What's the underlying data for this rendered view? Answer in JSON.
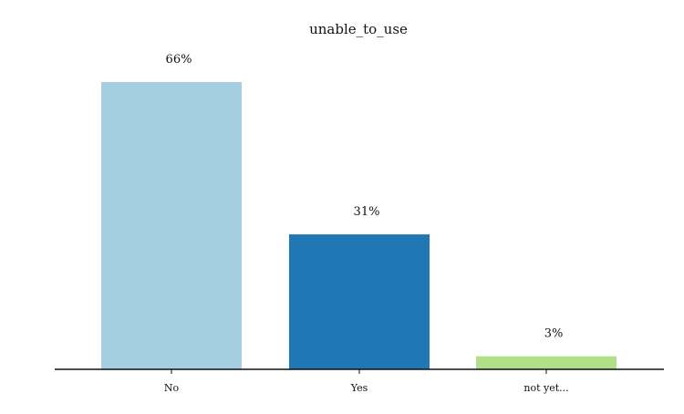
{
  "chart_data": {
    "type": "bar",
    "title": "unable_to_use",
    "xlabel": "",
    "ylabel": "",
    "categories": [
      "No",
      "Yes",
      "not yet..."
    ],
    "values": [
      66,
      31,
      3
    ],
    "value_labels": [
      "66%",
      "31%",
      "3%"
    ],
    "colors": [
      "#a6cee3",
      "#1f78b4",
      "#b2df8a"
    ],
    "ylim": [
      0,
      66
    ],
    "grid": false,
    "legend": "none"
  }
}
